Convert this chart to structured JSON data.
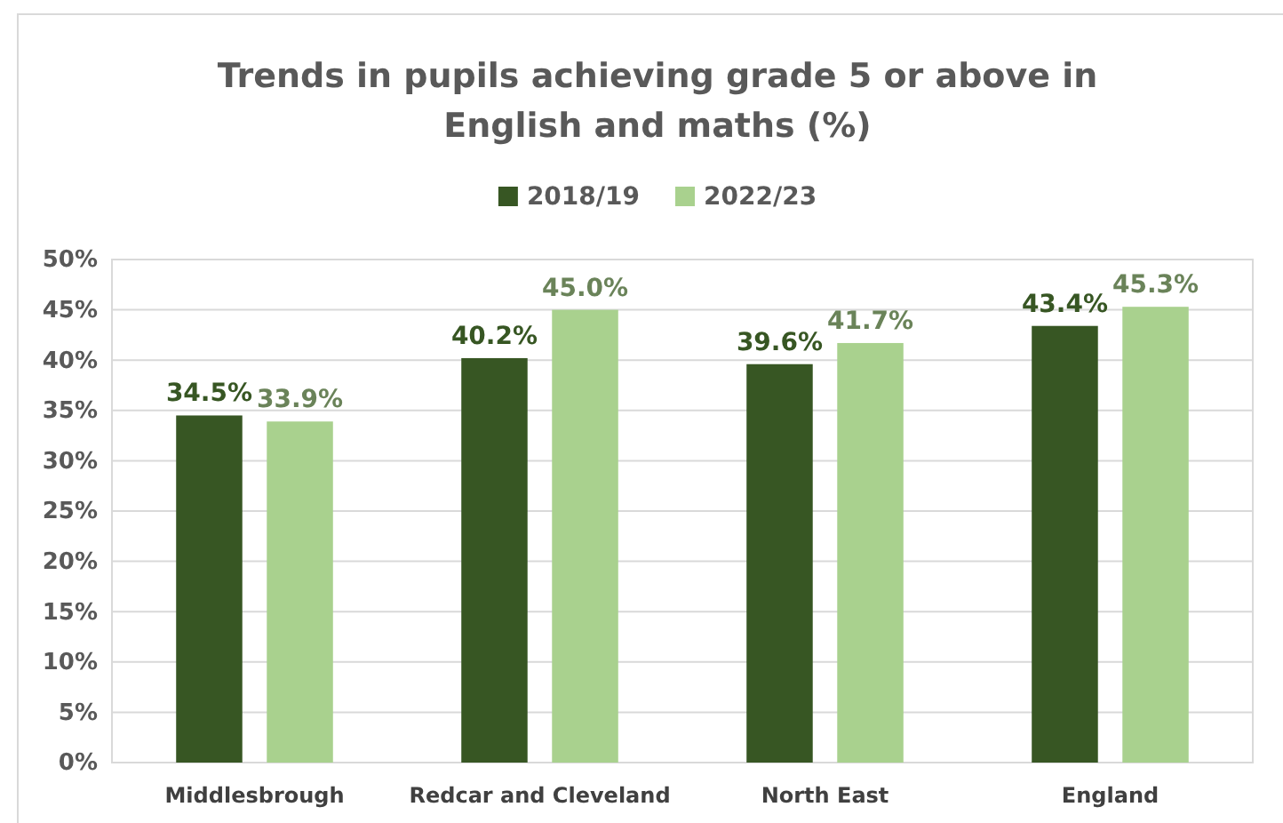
{
  "chart_data": {
    "type": "bar",
    "title": "Trends in pupils achieving grade 5 or above in English and maths (%)",
    "categories": [
      "Middlesbrough",
      "Redcar and Cleveland",
      "North East",
      "England"
    ],
    "series": [
      {
        "name": "2018/19",
        "color": "#375623",
        "values": [
          34.5,
          40.2,
          39.6,
          43.4
        ],
        "value_labels": [
          "34.5%",
          "40.2%",
          "39.6%",
          "43.4%"
        ]
      },
      {
        "name": "2022/23",
        "color": "#a9d18e",
        "values": [
          33.9,
          45.0,
          41.7,
          45.3
        ],
        "value_labels": [
          "33.9%",
          "45.0%",
          "41.7%",
          "45.3%"
        ]
      }
    ],
    "ylim": [
      0,
      50
    ],
    "yticks": [
      {
        "value": 0,
        "label": "0%"
      },
      {
        "value": 5,
        "label": "5%"
      },
      {
        "value": 10,
        "label": "10%"
      },
      {
        "value": 15,
        "label": "15%"
      },
      {
        "value": 20,
        "label": "20%"
      },
      {
        "value": 25,
        "label": "25%"
      },
      {
        "value": 30,
        "label": "30%"
      },
      {
        "value": 35,
        "label": "35%"
      },
      {
        "value": 40,
        "label": "40%"
      },
      {
        "value": 45,
        "label": "45%"
      },
      {
        "value": 50,
        "label": "50%"
      }
    ],
    "grid": "y",
    "legend": "top"
  }
}
